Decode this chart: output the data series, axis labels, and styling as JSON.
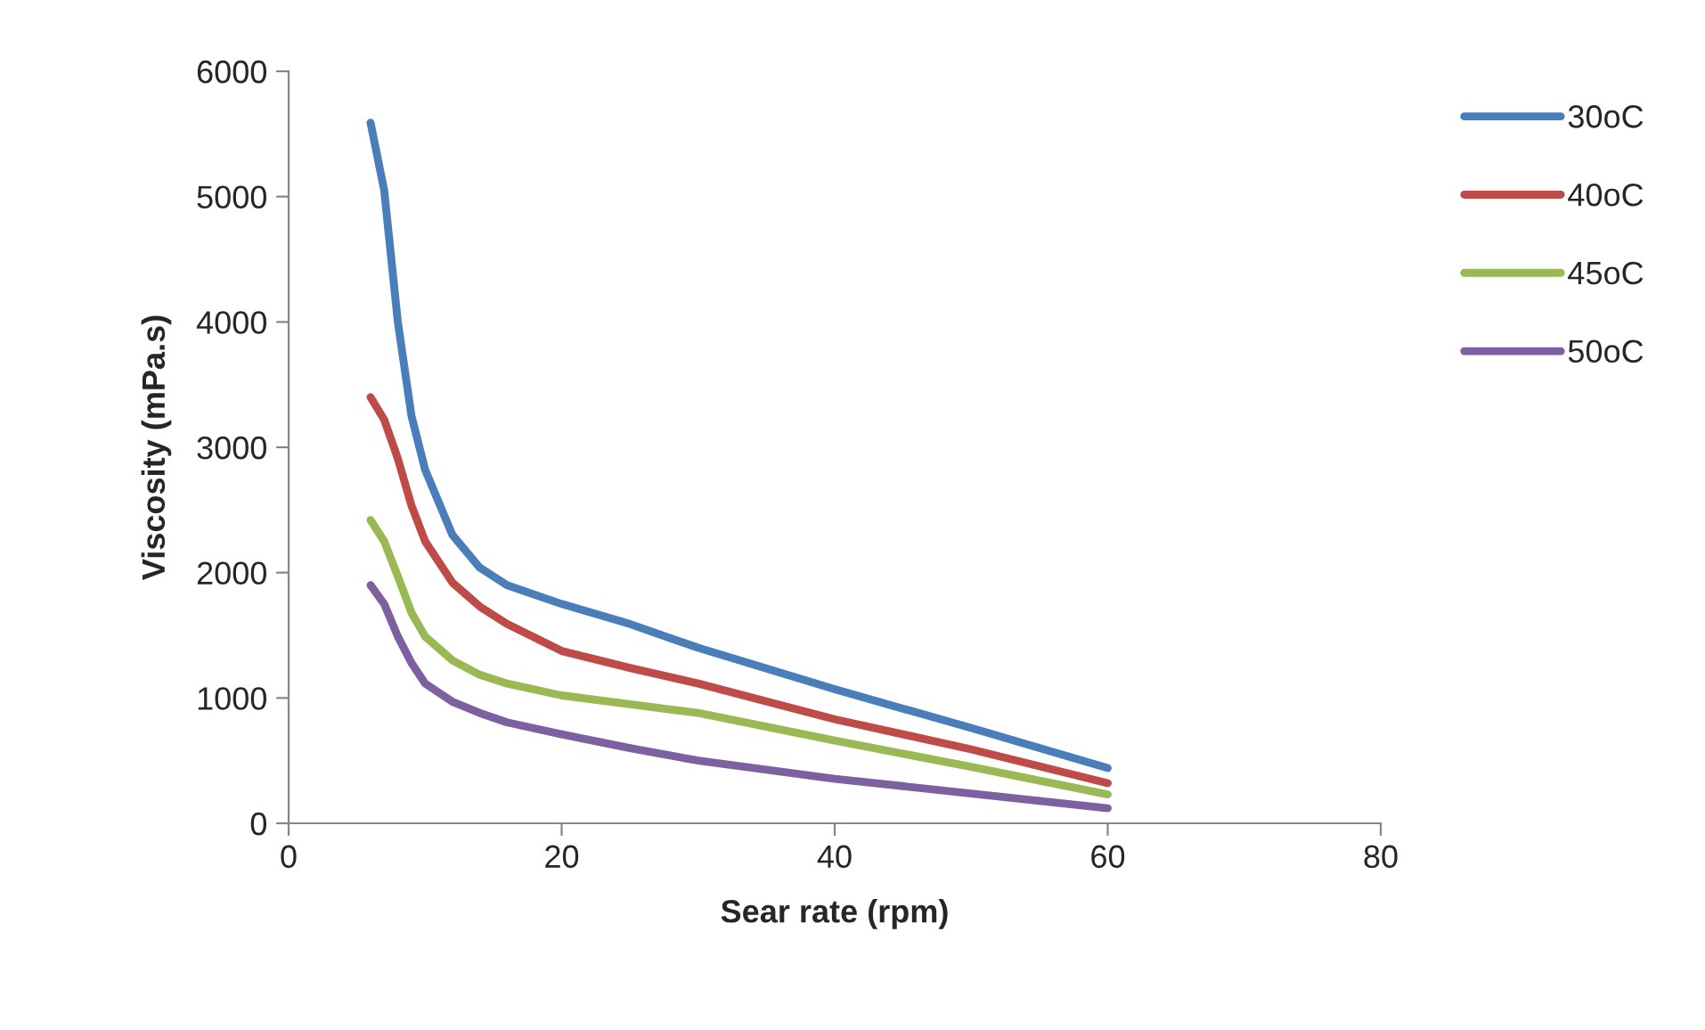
{
  "chart_data": {
    "type": "line",
    "xlabel": "Sear rate (rpm)",
    "ylabel": "Viscosity (mPa.s)",
    "x": [
      6,
      7,
      8,
      9,
      10,
      12,
      14,
      16,
      20,
      25,
      30,
      40,
      50,
      60
    ],
    "series": [
      {
        "name": "30oC",
        "color": "#4a7ebb",
        "values": [
          5590,
          5050,
          4000,
          3250,
          2820,
          2300,
          2040,
          1900,
          1750,
          1590,
          1400,
          1070,
          760,
          440
        ]
      },
      {
        "name": "40oC",
        "color": "#be4b48",
        "values": [
          3400,
          3220,
          2910,
          2535,
          2250,
          1920,
          1730,
          1590,
          1375,
          1240,
          1115,
          830,
          590,
          320
        ]
      },
      {
        "name": "45oC",
        "color": "#98b954",
        "values": [
          2420,
          2250,
          1970,
          1680,
          1490,
          1300,
          1185,
          1115,
          1020,
          950,
          880,
          660,
          450,
          230
        ]
      },
      {
        "name": "50oC",
        "color": "#7d60a0",
        "values": [
          1900,
          1750,
          1490,
          1280,
          1115,
          970,
          880,
          805,
          710,
          600,
          500,
          355,
          237,
          120
        ]
      }
    ],
    "xlim": [
      0,
      80
    ],
    "xticks": [
      0,
      20,
      40,
      60,
      80
    ],
    "ylim": [
      0,
      6000
    ],
    "yticks": [
      0,
      1000,
      2000,
      3000,
      4000,
      5000,
      6000
    ],
    "grid": false,
    "legend": "right",
    "marker": "none",
    "line_style": "solid"
  }
}
